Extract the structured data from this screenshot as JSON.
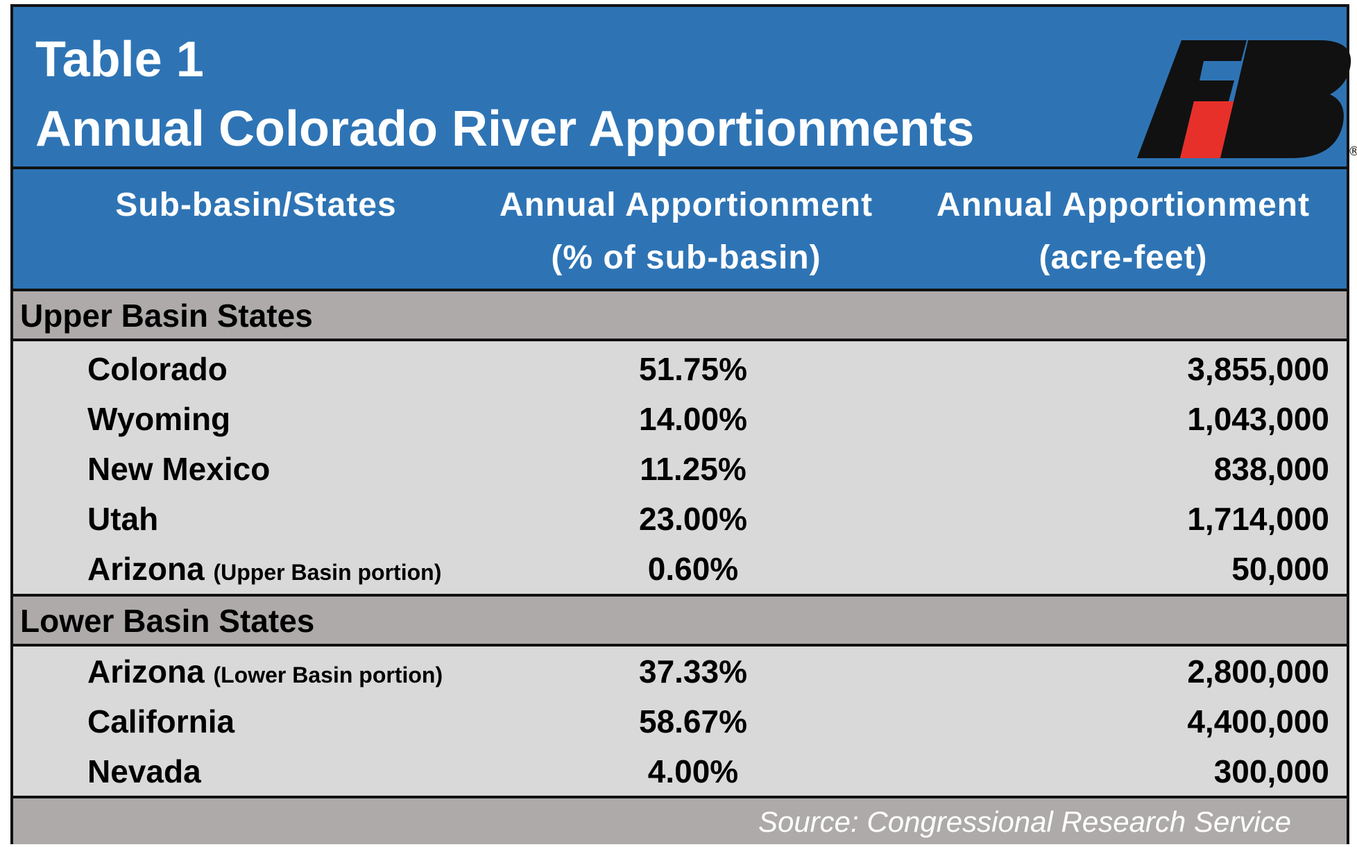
{
  "title": {
    "line1": "Table 1",
    "line2": "Annual Colorado River Apportionments"
  },
  "columns": {
    "col1": "Sub-basin/States",
    "col2_line1": "Annual Apportionment",
    "col2_line2": "(% of sub-basin)",
    "col3_line1": "Annual Apportionment",
    "col3_line2": "(acre-feet)"
  },
  "logo": {
    "icon": "farm-bureau-fb-logo",
    "colors": {
      "primary": "#111111",
      "accent": "#e8302a"
    },
    "registered_mark": "®"
  },
  "chart_data": {
    "type": "table",
    "title": "Annual Colorado River Apportionments",
    "columns": [
      "Sub-basin/States",
      "Annual Apportionment (% of sub-basin)",
      "Annual Apportionment (acre-feet)"
    ],
    "sections": [
      {
        "name": "Upper Basin States",
        "rows": [
          {
            "state": "Colorado",
            "note": "",
            "pct": "51.75%",
            "acre_feet": "3,855,000"
          },
          {
            "state": "Wyoming",
            "note": "",
            "pct": "14.00%",
            "acre_feet": "1,043,000"
          },
          {
            "state": "New Mexico",
            "note": "",
            "pct": "11.25%",
            "acre_feet": "838,000"
          },
          {
            "state": "Utah",
            "note": "",
            "pct": "23.00%",
            "acre_feet": "1,714,000"
          },
          {
            "state": "Arizona",
            "note": "(Upper Basin portion)",
            "pct": "0.60%",
            "acre_feet": "50,000"
          }
        ]
      },
      {
        "name": "Lower Basin States",
        "rows": [
          {
            "state": "Arizona",
            "note": "(Lower Basin portion)",
            "pct": "37.33%",
            "acre_feet": "2,800,000"
          },
          {
            "state": "California",
            "note": "",
            "pct": "58.67%",
            "acre_feet": "4,400,000"
          },
          {
            "state": "Nevada",
            "note": "",
            "pct": "4.00%",
            "acre_feet": "300,000"
          }
        ]
      }
    ]
  },
  "source": "Source: Congressional Research Service",
  "colors": {
    "header_blue": "#2e74b5",
    "section_gray": "#aeaaaa",
    "row_gray": "#d9d9d9"
  }
}
